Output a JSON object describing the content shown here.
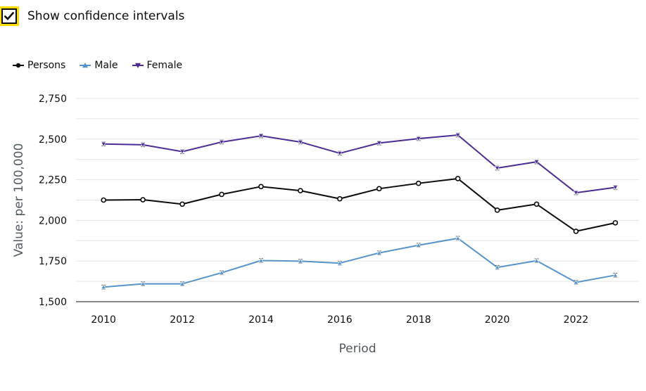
{
  "controls": {
    "ci_label": "Show confidence intervals",
    "ci_checked": true
  },
  "chart_data": {
    "type": "line",
    "title": "",
    "xlabel": "Period",
    "ylabel": "Value: per 100,000",
    "x": [
      2010,
      2011,
      2012,
      2013,
      2014,
      2015,
      2016,
      2017,
      2018,
      2019,
      2020,
      2021,
      2022,
      2023
    ],
    "xticks": [
      2010,
      2012,
      2014,
      2016,
      2018,
      2020,
      2022
    ],
    "xlim": [
      2009.3,
      2023.6
    ],
    "ylim": [
      1500,
      2750
    ],
    "yticks": [
      1500,
      1750,
      2000,
      2250,
      2500,
      2750
    ],
    "ytick_labels": [
      "1,500",
      "1,750",
      "2,000",
      "2,250",
      "2,500",
      "2,750"
    ],
    "grid": true,
    "legend_position": "top-left",
    "series": [
      {
        "name": "Persons",
        "color": "#0b0c0c",
        "marker": "circle",
        "values": [
          2125,
          2127,
          2100,
          2160,
          2208,
          2183,
          2133,
          2195,
          2228,
          2257,
          2063,
          2100,
          1933,
          1985
        ],
        "ci": [
          10,
          10,
          10,
          10,
          10,
          10,
          10,
          10,
          10,
          10,
          10,
          10,
          10,
          10
        ]
      },
      {
        "name": "Male",
        "color": "#5694ca",
        "marker": "triangle-up",
        "values": [
          1590,
          1610,
          1610,
          1678,
          1753,
          1749,
          1737,
          1800,
          1847,
          1890,
          1711,
          1752,
          1619,
          1663
        ],
        "ci": [
          12,
          12,
          12,
          12,
          12,
          12,
          12,
          12,
          12,
          12,
          12,
          12,
          12,
          12
        ]
      },
      {
        "name": "Female",
        "color": "#4c2c92",
        "marker": "triangle-down",
        "values": [
          2470,
          2465,
          2423,
          2482,
          2520,
          2482,
          2413,
          2476,
          2503,
          2525,
          2322,
          2360,
          2170,
          2203
        ],
        "ci": [
          12,
          12,
          12,
          12,
          12,
          12,
          12,
          12,
          12,
          12,
          12,
          12,
          12,
          12
        ]
      }
    ]
  }
}
